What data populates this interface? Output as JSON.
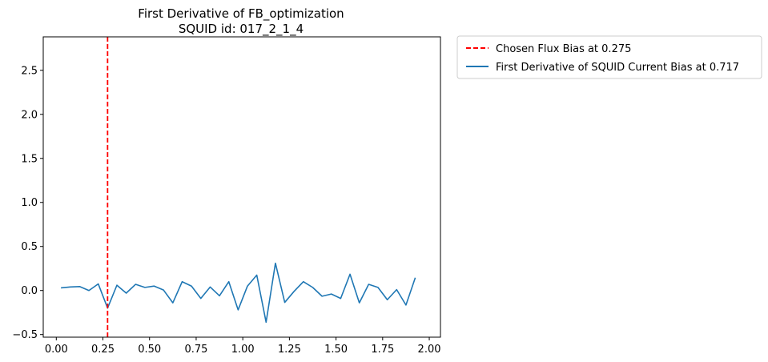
{
  "chart_data": {
    "type": "line",
    "title": "First Derivative of FB_optimization",
    "subtitle": "SQUID id: 017_2_1_4",
    "xlabel": "",
    "ylabel": "",
    "xlim": [
      -0.07,
      2.06
    ],
    "ylim": [
      -0.53,
      2.88
    ],
    "x_ticks": [
      0.0,
      0.25,
      0.5,
      0.75,
      1.0,
      1.25,
      1.5,
      1.75,
      2.0
    ],
    "x_tick_labels": [
      "0.00",
      "0.25",
      "0.50",
      "0.75",
      "1.00",
      "1.25",
      "1.50",
      "1.75",
      "2.00"
    ],
    "y_ticks": [
      -0.5,
      0.0,
      0.5,
      1.0,
      1.5,
      2.0,
      2.5
    ],
    "y_tick_labels": [
      "−0.5",
      "0.0",
      "0.5",
      "1.0",
      "1.5",
      "2.0",
      "2.5"
    ],
    "grid": false,
    "legend_placement": "outside-upper-right",
    "vline": {
      "x": 0.275,
      "name": "Chosen Flux Bias at 0.275",
      "color": "#ff0000",
      "style": "dashed"
    },
    "series": [
      {
        "name": "First Derivative of SQUID Current Bias at 0.717",
        "color": "#1f77b4",
        "x": [
          0.025,
          0.075,
          0.125,
          0.175,
          0.225,
          0.275,
          0.325,
          0.375,
          0.425,
          0.475,
          0.525,
          0.575,
          0.625,
          0.675,
          0.725,
          0.775,
          0.825,
          0.875,
          0.925,
          0.975,
          1.025,
          1.075,
          1.125,
          1.175,
          1.225,
          1.275,
          1.325,
          1.375,
          1.425,
          1.475,
          1.525,
          1.575,
          1.625,
          1.675,
          1.725,
          1.775,
          1.825,
          1.875,
          1.925
        ],
        "y": [
          0.03,
          0.04,
          0.045,
          0.0,
          0.075,
          -0.2,
          0.06,
          -0.03,
          0.07,
          0.035,
          0.05,
          0.005,
          -0.14,
          0.1,
          0.05,
          -0.09,
          0.04,
          -0.06,
          0.1,
          -0.22,
          0.05,
          0.175,
          -0.36,
          0.31,
          -0.135,
          -0.01,
          0.1,
          0.035,
          -0.065,
          -0.04,
          -0.09,
          0.185,
          -0.14,
          0.07,
          0.035,
          -0.105,
          0.01,
          -0.165,
          0.145
        ]
      }
    ]
  }
}
